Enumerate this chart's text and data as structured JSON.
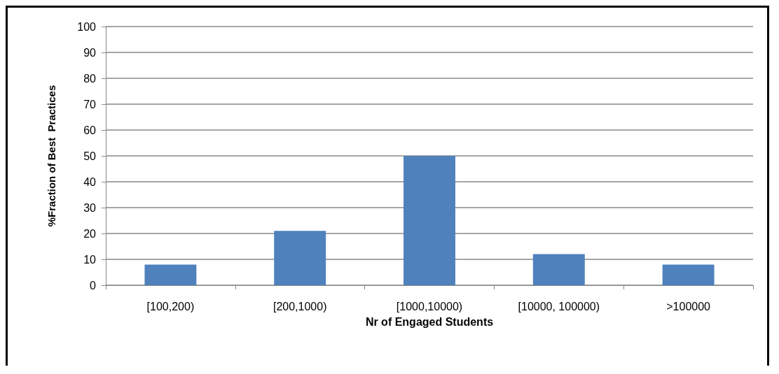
{
  "chart_data": {
    "type": "bar",
    "xlabel": "Nr of Engaged Students",
    "ylabel": "%Fraction of Best  Practices",
    "categories": [
      "[100,200)",
      "[200,1000)",
      "[1000,10000)",
      "[10000, 100000)",
      ">100000"
    ],
    "values": [
      8,
      21,
      50,
      12,
      8
    ],
    "color": "#4f81bd",
    "ylim": [
      0,
      100
    ],
    "yticks": [
      0,
      10,
      20,
      30,
      40,
      50,
      60,
      70,
      80,
      90,
      100
    ],
    "grid": "y"
  }
}
